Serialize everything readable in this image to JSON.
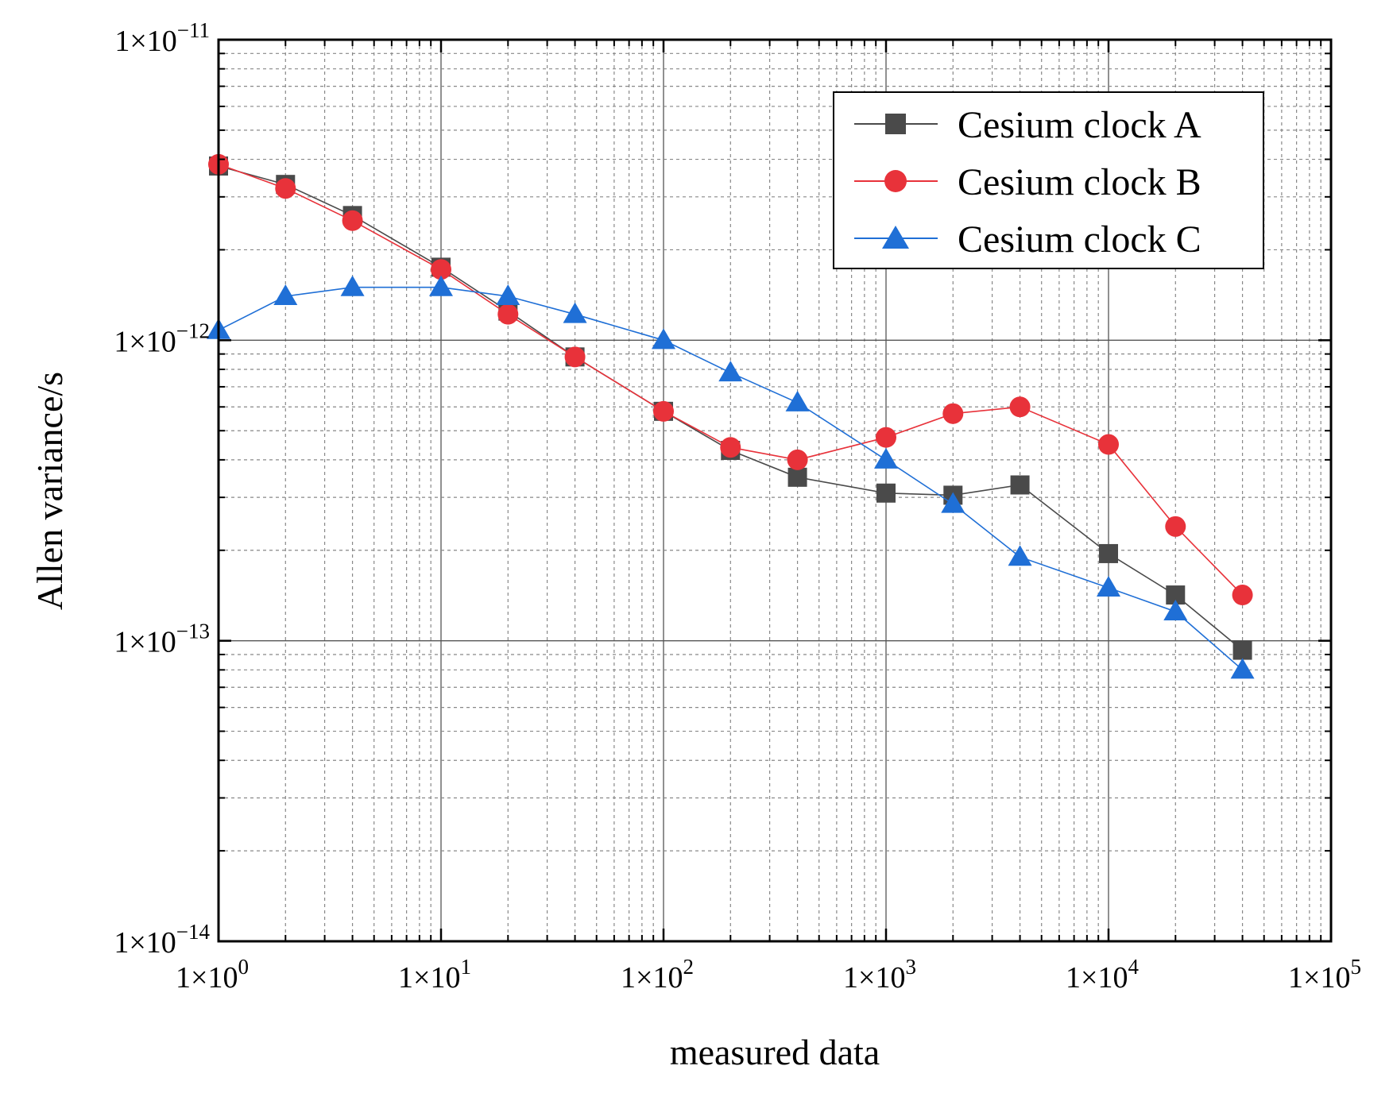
{
  "chart_data": {
    "type": "line",
    "x_scale": "log",
    "y_scale": "log",
    "xlabel": "measured data",
    "ylabel": "Allen variance/s",
    "xlim": [
      1,
      100000
    ],
    "ylim": [
      1e-14,
      1e-11
    ],
    "grid": true,
    "legend_position": "top-right",
    "x_ticks": [
      {
        "value": 1,
        "base": "1×10",
        "exp": "0"
      },
      {
        "value": 10,
        "base": "1×10",
        "exp": "1"
      },
      {
        "value": 100,
        "base": "1×10",
        "exp": "2"
      },
      {
        "value": 1000,
        "base": "1×10",
        "exp": "3"
      },
      {
        "value": 10000,
        "base": "1×10",
        "exp": "4"
      },
      {
        "value": 100000,
        "base": "1×10",
        "exp": "5"
      }
    ],
    "y_ticks": [
      {
        "value": 1e-14,
        "base": "1×10",
        "exp": "−14"
      },
      {
        "value": 1e-13,
        "base": "1×10",
        "exp": "−13"
      },
      {
        "value": 1e-12,
        "base": "1×10",
        "exp": "−12"
      },
      {
        "value": 1e-11,
        "base": "1×10",
        "exp": "−11"
      }
    ],
    "x": [
      1,
      2,
      4,
      10,
      20,
      40,
      100,
      200,
      400,
      1000,
      2000,
      4000,
      10000,
      20000,
      40000
    ],
    "series": [
      {
        "name": "Cesium clock A",
        "color": "#4a4a4a",
        "marker": "square",
        "values": [
          3.8e-12,
          3.3e-12,
          2.6e-12,
          1.75e-12,
          1.25e-12,
          8.8e-13,
          5.8e-13,
          4.3e-13,
          3.5e-13,
          3.1e-13,
          3.05e-13,
          3.3e-13,
          1.95e-13,
          1.42e-13,
          9.3e-14
        ]
      },
      {
        "name": "Cesium clock B",
        "color": "#e8323a",
        "marker": "circle",
        "values": [
          3.85e-12,
          3.2e-12,
          2.5e-12,
          1.72e-12,
          1.22e-12,
          8.8e-13,
          5.8e-13,
          4.4e-13,
          4e-13,
          4.75e-13,
          5.7e-13,
          6e-13,
          4.5e-13,
          2.4e-13,
          1.42e-13
        ]
      },
      {
        "name": "Cesium clock C",
        "color": "#1f6fd6",
        "marker": "triangle",
        "values": [
          1.08e-12,
          1.4e-12,
          1.5e-12,
          1.5e-12,
          1.4e-12,
          1.22e-12,
          1e-12,
          7.8e-13,
          6.2e-13,
          4e-13,
          2.85e-13,
          1.9e-13,
          1.5e-13,
          1.25e-13,
          8e-14
        ]
      }
    ]
  }
}
